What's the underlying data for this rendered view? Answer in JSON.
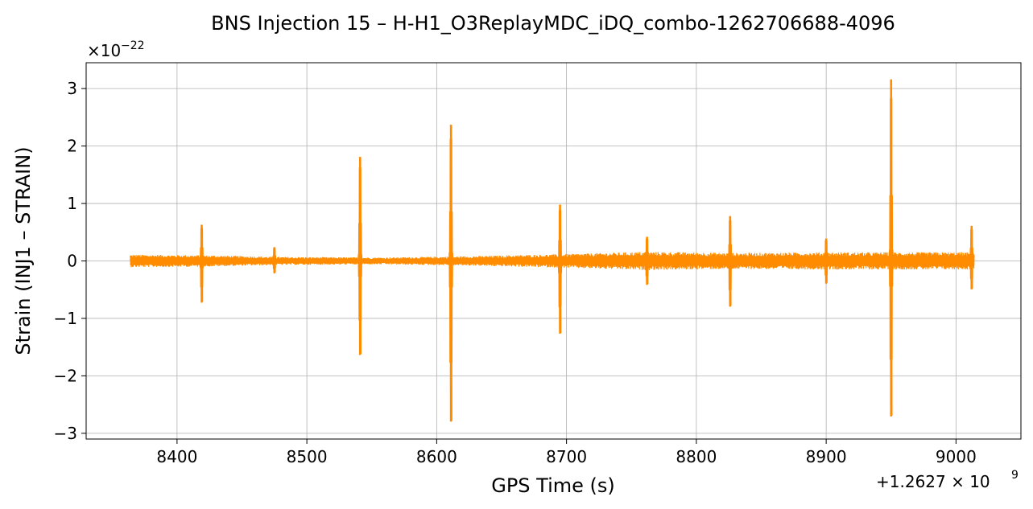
{
  "chart_data": {
    "type": "line",
    "title": "BNS Injection 15 – H-H1_O3ReplayMDC_iDQ_combo-1262706688-4096",
    "xlabel": "GPS Time (s)",
    "ylabel": "Strain (INJ1 – STRAIN)",
    "y_multiplier_base": "×10",
    "y_multiplier_exp": "−22",
    "x_offset_base": "+1.2627 × 10",
    "x_offset_exp": "9",
    "xlim": [
      8330,
      9050
    ],
    "ylim": [
      -3.1,
      3.45
    ],
    "x_ticks": [
      8400,
      8500,
      8600,
      8700,
      8800,
      8900,
      9000
    ],
    "x_tick_labels": [
      "8400",
      "8500",
      "8600",
      "8700",
      "8800",
      "8900",
      "9000"
    ],
    "y_ticks": [
      -3,
      -2,
      -1,
      0,
      1,
      2,
      3
    ],
    "y_tick_labels": [
      "−3",
      "−2",
      "−1",
      "0",
      "1",
      "2",
      "3"
    ],
    "grid": true,
    "series": [
      {
        "color": "#ff8c00",
        "x_range": [
          8364,
          9014
        ],
        "noise_envelope": [
          {
            "x": 8364,
            "amp": 0.11
          },
          {
            "x": 8420,
            "amp": 0.1
          },
          {
            "x": 8480,
            "amp": 0.07
          },
          {
            "x": 8560,
            "amp": 0.06
          },
          {
            "x": 8620,
            "amp": 0.08
          },
          {
            "x": 8700,
            "amp": 0.12
          },
          {
            "x": 8760,
            "amp": 0.16
          },
          {
            "x": 8830,
            "amp": 0.14
          },
          {
            "x": 8900,
            "amp": 0.15
          },
          {
            "x": 9014,
            "amp": 0.15
          }
        ],
        "spikes": [
          {
            "x": 8419,
            "max": 0.63,
            "min": -0.71
          },
          {
            "x": 8475,
            "max": 0.24,
            "min": -0.2
          },
          {
            "x": 8541,
            "max": 1.81,
            "min": -1.62
          },
          {
            "x": 8611,
            "max": 2.37,
            "min": -2.78
          },
          {
            "x": 8695,
            "max": 0.98,
            "min": -1.25
          },
          {
            "x": 8762,
            "max": 0.42,
            "min": -0.4
          },
          {
            "x": 8826,
            "max": 0.78,
            "min": -0.78
          },
          {
            "x": 8900,
            "max": 0.39,
            "min": -0.38
          },
          {
            "x": 8950,
            "max": 3.16,
            "min": -2.69
          },
          {
            "x": 9012,
            "max": 0.61,
            "min": -0.48
          }
        ]
      }
    ]
  }
}
